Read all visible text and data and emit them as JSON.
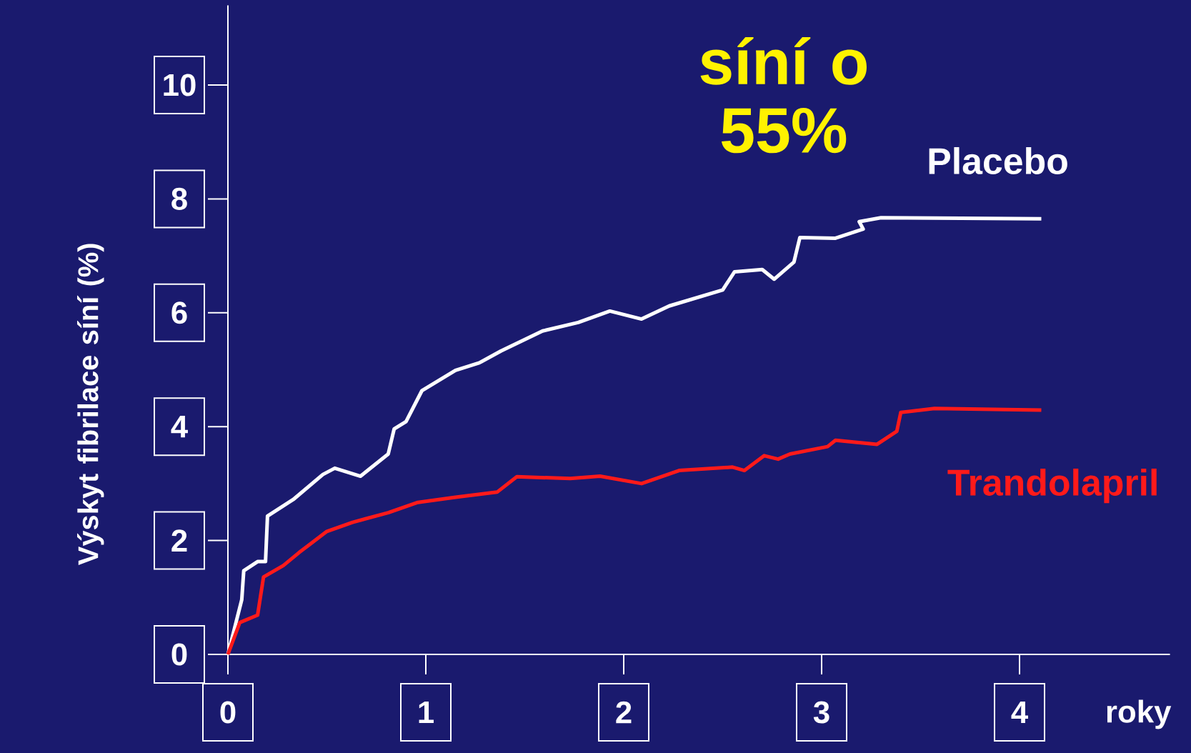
{
  "chart_data": {
    "type": "line",
    "title": "síní o 55%",
    "xlabel": "roky",
    "ylabel": "Výskyt fibrilace síní (%)",
    "xlim": [
      0,
      4.76
    ],
    "ylim": [
      0,
      11.4
    ],
    "xticks": [
      0,
      1,
      2,
      3,
      4
    ],
    "yticks": [
      0,
      2,
      4,
      6,
      8,
      10
    ],
    "grid": false,
    "marker": "none",
    "line_style": "solid",
    "series": [
      {
        "name": "Placebo",
        "color": "#ffffff",
        "x": [
          0,
          0.07,
          0.08,
          0.15,
          0.19,
          0.2,
          0.33,
          0.48,
          0.54,
          0.67,
          0.81,
          0.84,
          0.9,
          0.98,
          1.15,
          1.27,
          1.38,
          1.59,
          1.77,
          1.93,
          2.09,
          2.23,
          2.5,
          2.56,
          2.7,
          2.76,
          2.86,
          2.89,
          3.07,
          3.21,
          3.19,
          3.3,
          4.11
        ],
        "values": [
          0,
          0.96,
          1.47,
          1.63,
          1.63,
          2.43,
          2.72,
          3.16,
          3.27,
          3.13,
          3.52,
          3.96,
          4.09,
          4.63,
          4.99,
          5.12,
          5.33,
          5.68,
          5.83,
          6.03,
          5.89,
          6.12,
          6.4,
          6.72,
          6.76,
          6.59,
          6.89,
          7.32,
          7.31,
          7.47,
          7.6,
          7.67,
          7.65
        ]
      },
      {
        "name": "Trandolapril",
        "color": "#ff1a1a",
        "x": [
          0,
          0.06,
          0.15,
          0.18,
          0.28,
          0.36,
          0.5,
          0.63,
          0.81,
          0.96,
          1.15,
          1.36,
          1.46,
          1.73,
          1.88,
          2.09,
          2.28,
          2.55,
          2.61,
          2.71,
          2.78,
          2.84,
          3.03,
          3.07,
          3.28,
          3.38,
          3.4,
          3.57,
          4.11
        ],
        "values": [
          0,
          0.56,
          0.69,
          1.36,
          1.56,
          1.79,
          2.16,
          2.32,
          2.49,
          2.67,
          2.76,
          2.85,
          3.12,
          3.09,
          3.13,
          3.0,
          3.23,
          3.29,
          3.23,
          3.49,
          3.43,
          3.52,
          3.65,
          3.76,
          3.69,
          3.92,
          4.25,
          4.32,
          4.29
        ]
      }
    ]
  }
}
